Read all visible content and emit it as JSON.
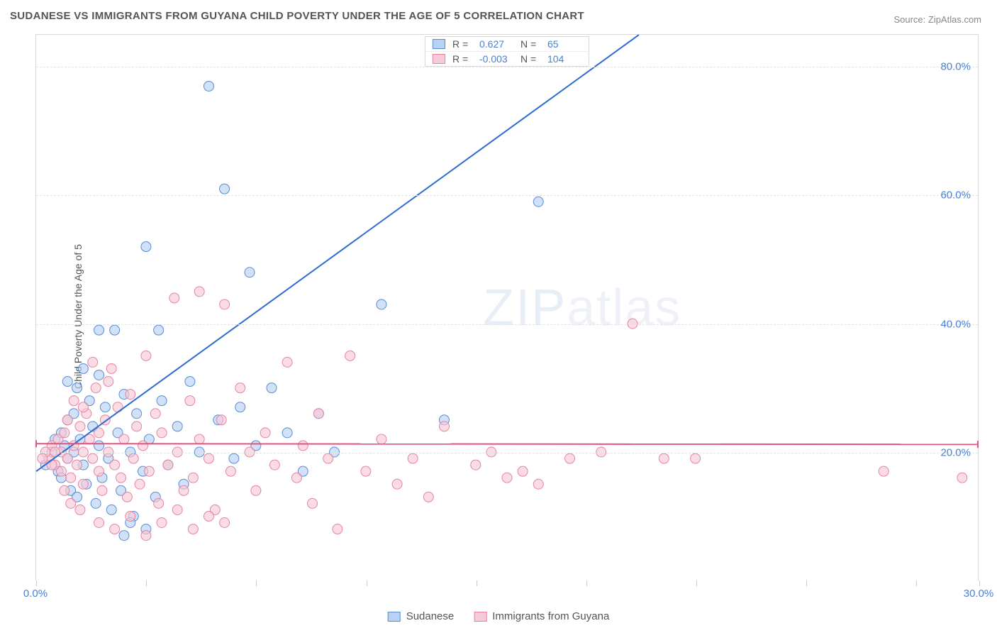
{
  "title": "SUDANESE VS IMMIGRANTS FROM GUYANA CHILD POVERTY UNDER THE AGE OF 5 CORRELATION CHART",
  "source_label": "Source: ZipAtlas.com",
  "ylabel": "Child Poverty Under the Age of 5",
  "watermark": "ZIPatlas",
  "chart": {
    "type": "scatter",
    "background_color": "#ffffff",
    "grid_color": "#e3e3e3",
    "axis_color": "#d9d9d9",
    "xlim": [
      0,
      30
    ],
    "ylim": [
      0,
      85
    ],
    "xtick_positions": [
      0,
      3.5,
      7,
      10.5,
      14,
      17.5,
      21,
      24.5,
      28,
      30
    ],
    "xtick_labels": {
      "0": "0.0%",
      "30": "30.0%"
    },
    "ytick_positions": [
      20,
      40,
      60,
      80
    ],
    "ytick_labels": {
      "20": "20.0%",
      "40": "40.0%",
      "60": "60.0%",
      "80": "80.0%"
    },
    "label_color": "#4a7fd6",
    "series": [
      {
        "name": "Sudanese",
        "marker_fill": "#b8d2f4",
        "marker_stroke": "#5a8bd4",
        "marker_radius": 7,
        "marker_opacity": 0.65,
        "R": "0.627",
        "N": "65",
        "trend": {
          "x1": 0,
          "y1": 17,
          "x2": 19.2,
          "y2": 85,
          "color": "#2e6cd1",
          "width": 2
        },
        "points": [
          [
            0.3,
            18
          ],
          [
            0.5,
            20
          ],
          [
            0.6,
            22
          ],
          [
            0.7,
            17
          ],
          [
            0.8,
            16
          ],
          [
            0.8,
            23
          ],
          [
            0.9,
            21
          ],
          [
            1.0,
            25
          ],
          [
            1.0,
            19
          ],
          [
            1.1,
            14
          ],
          [
            1.2,
            26
          ],
          [
            1.2,
            20
          ],
          [
            1.3,
            30
          ],
          [
            1.4,
            22
          ],
          [
            1.5,
            33
          ],
          [
            1.5,
            18
          ],
          [
            1.6,
            15
          ],
          [
            1.7,
            28
          ],
          [
            1.8,
            24
          ],
          [
            1.9,
            12
          ],
          [
            2.0,
            39
          ],
          [
            2.0,
            21
          ],
          [
            2.1,
            16
          ],
          [
            2.2,
            27
          ],
          [
            2.3,
            19
          ],
          [
            2.4,
            11
          ],
          [
            2.5,
            39
          ],
          [
            2.6,
            23
          ],
          [
            2.7,
            14
          ],
          [
            2.8,
            29
          ],
          [
            3.0,
            20
          ],
          [
            3.1,
            10
          ],
          [
            3.2,
            26
          ],
          [
            3.4,
            17
          ],
          [
            3.5,
            52
          ],
          [
            3.6,
            22
          ],
          [
            3.8,
            13
          ],
          [
            3.9,
            39
          ],
          [
            4.0,
            28
          ],
          [
            4.2,
            18
          ],
          [
            4.5,
            24
          ],
          [
            4.7,
            15
          ],
          [
            4.9,
            31
          ],
          [
            5.2,
            20
          ],
          [
            5.5,
            77
          ],
          [
            5.8,
            25
          ],
          [
            6.0,
            61
          ],
          [
            6.3,
            19
          ],
          [
            6.5,
            27
          ],
          [
            6.8,
            48
          ],
          [
            7.0,
            21
          ],
          [
            7.5,
            30
          ],
          [
            8.0,
            23
          ],
          [
            8.5,
            17
          ],
          [
            9.0,
            26
          ],
          [
            9.5,
            20
          ],
          [
            11.0,
            43
          ],
          [
            13.0,
            25
          ],
          [
            16.0,
            59
          ],
          [
            2.0,
            32
          ],
          [
            1.3,
            13
          ],
          [
            3.0,
            9
          ],
          [
            3.5,
            8
          ],
          [
            2.8,
            7
          ],
          [
            1.0,
            31
          ]
        ]
      },
      {
        "name": "Immigrants from Guyana",
        "marker_fill": "#f8c9d6",
        "marker_stroke": "#e683a3",
        "marker_radius": 7,
        "marker_opacity": 0.65,
        "R": "-0.003",
        "N": "104",
        "trend": {
          "x1": 0,
          "y1": 21.3,
          "x2": 30,
          "y2": 21.2,
          "color": "#e6527f",
          "width": 2,
          "cap_color": "#e6527f"
        },
        "points": [
          [
            0.4,
            19
          ],
          [
            0.5,
            21
          ],
          [
            0.6,
            18
          ],
          [
            0.7,
            22
          ],
          [
            0.8,
            20
          ],
          [
            0.8,
            17
          ],
          [
            0.9,
            23
          ],
          [
            1.0,
            19
          ],
          [
            1.0,
            25
          ],
          [
            1.1,
            16
          ],
          [
            1.2,
            21
          ],
          [
            1.2,
            28
          ],
          [
            1.3,
            18
          ],
          [
            1.4,
            24
          ],
          [
            1.5,
            20
          ],
          [
            1.5,
            15
          ],
          [
            1.6,
            26
          ],
          [
            1.7,
            22
          ],
          [
            1.8,
            19
          ],
          [
            1.9,
            30
          ],
          [
            2.0,
            17
          ],
          [
            2.0,
            23
          ],
          [
            2.1,
            14
          ],
          [
            2.2,
            25
          ],
          [
            2.3,
            20
          ],
          [
            2.4,
            33
          ],
          [
            2.5,
            18
          ],
          [
            2.6,
            27
          ],
          [
            2.7,
            16
          ],
          [
            2.8,
            22
          ],
          [
            2.9,
            13
          ],
          [
            3.0,
            29
          ],
          [
            3.1,
            19
          ],
          [
            3.2,
            24
          ],
          [
            3.3,
            15
          ],
          [
            3.4,
            21
          ],
          [
            3.5,
            35
          ],
          [
            3.6,
            17
          ],
          [
            3.8,
            26
          ],
          [
            3.9,
            12
          ],
          [
            4.0,
            23
          ],
          [
            4.2,
            18
          ],
          [
            4.4,
            44
          ],
          [
            4.5,
            20
          ],
          [
            4.7,
            14
          ],
          [
            4.9,
            28
          ],
          [
            5.0,
            16
          ],
          [
            5.2,
            22
          ],
          [
            5.5,
            19
          ],
          [
            5.7,
            11
          ],
          [
            5.9,
            25
          ],
          [
            6.0,
            43
          ],
          [
            6.2,
            17
          ],
          [
            6.5,
            30
          ],
          [
            6.8,
            20
          ],
          [
            7.0,
            14
          ],
          [
            7.3,
            23
          ],
          [
            7.6,
            18
          ],
          [
            8.0,
            34
          ],
          [
            8.3,
            16
          ],
          [
            8.5,
            21
          ],
          [
            8.8,
            12
          ],
          [
            9.0,
            26
          ],
          [
            9.3,
            19
          ],
          [
            9.6,
            8
          ],
          [
            10.0,
            35
          ],
          [
            10.5,
            17
          ],
          [
            11.0,
            22
          ],
          [
            11.5,
            15
          ],
          [
            12.0,
            19
          ],
          [
            12.5,
            13
          ],
          [
            13.0,
            24
          ],
          [
            14.0,
            18
          ],
          [
            14.5,
            20
          ],
          [
            15.0,
            16
          ],
          [
            15.5,
            17
          ],
          [
            16.0,
            15
          ],
          [
            17.0,
            19
          ],
          [
            18.0,
            20
          ],
          [
            19.0,
            40
          ],
          [
            20.0,
            19
          ],
          [
            21.0,
            19
          ],
          [
            27.0,
            17
          ],
          [
            29.5,
            16
          ],
          [
            5.2,
            45
          ],
          [
            2.0,
            9
          ],
          [
            2.5,
            8
          ],
          [
            3.0,
            10
          ],
          [
            3.5,
            7
          ],
          [
            4.0,
            9
          ],
          [
            4.5,
            11
          ],
          [
            5.0,
            8
          ],
          [
            5.5,
            10
          ],
          [
            6.0,
            9
          ],
          [
            1.8,
            34
          ],
          [
            2.3,
            31
          ],
          [
            1.5,
            27
          ],
          [
            0.9,
            14
          ],
          [
            1.1,
            12
          ],
          [
            1.4,
            11
          ],
          [
            0.3,
            20
          ],
          [
            0.2,
            19
          ],
          [
            0.5,
            18
          ],
          [
            0.6,
            20
          ]
        ]
      }
    ]
  },
  "legend_bottom": [
    {
      "label": "Sudanese",
      "fill": "#b8d2f4",
      "stroke": "#5a8bd4"
    },
    {
      "label": "Immigrants from Guyana",
      "fill": "#f8c9d6",
      "stroke": "#e683a3"
    }
  ]
}
